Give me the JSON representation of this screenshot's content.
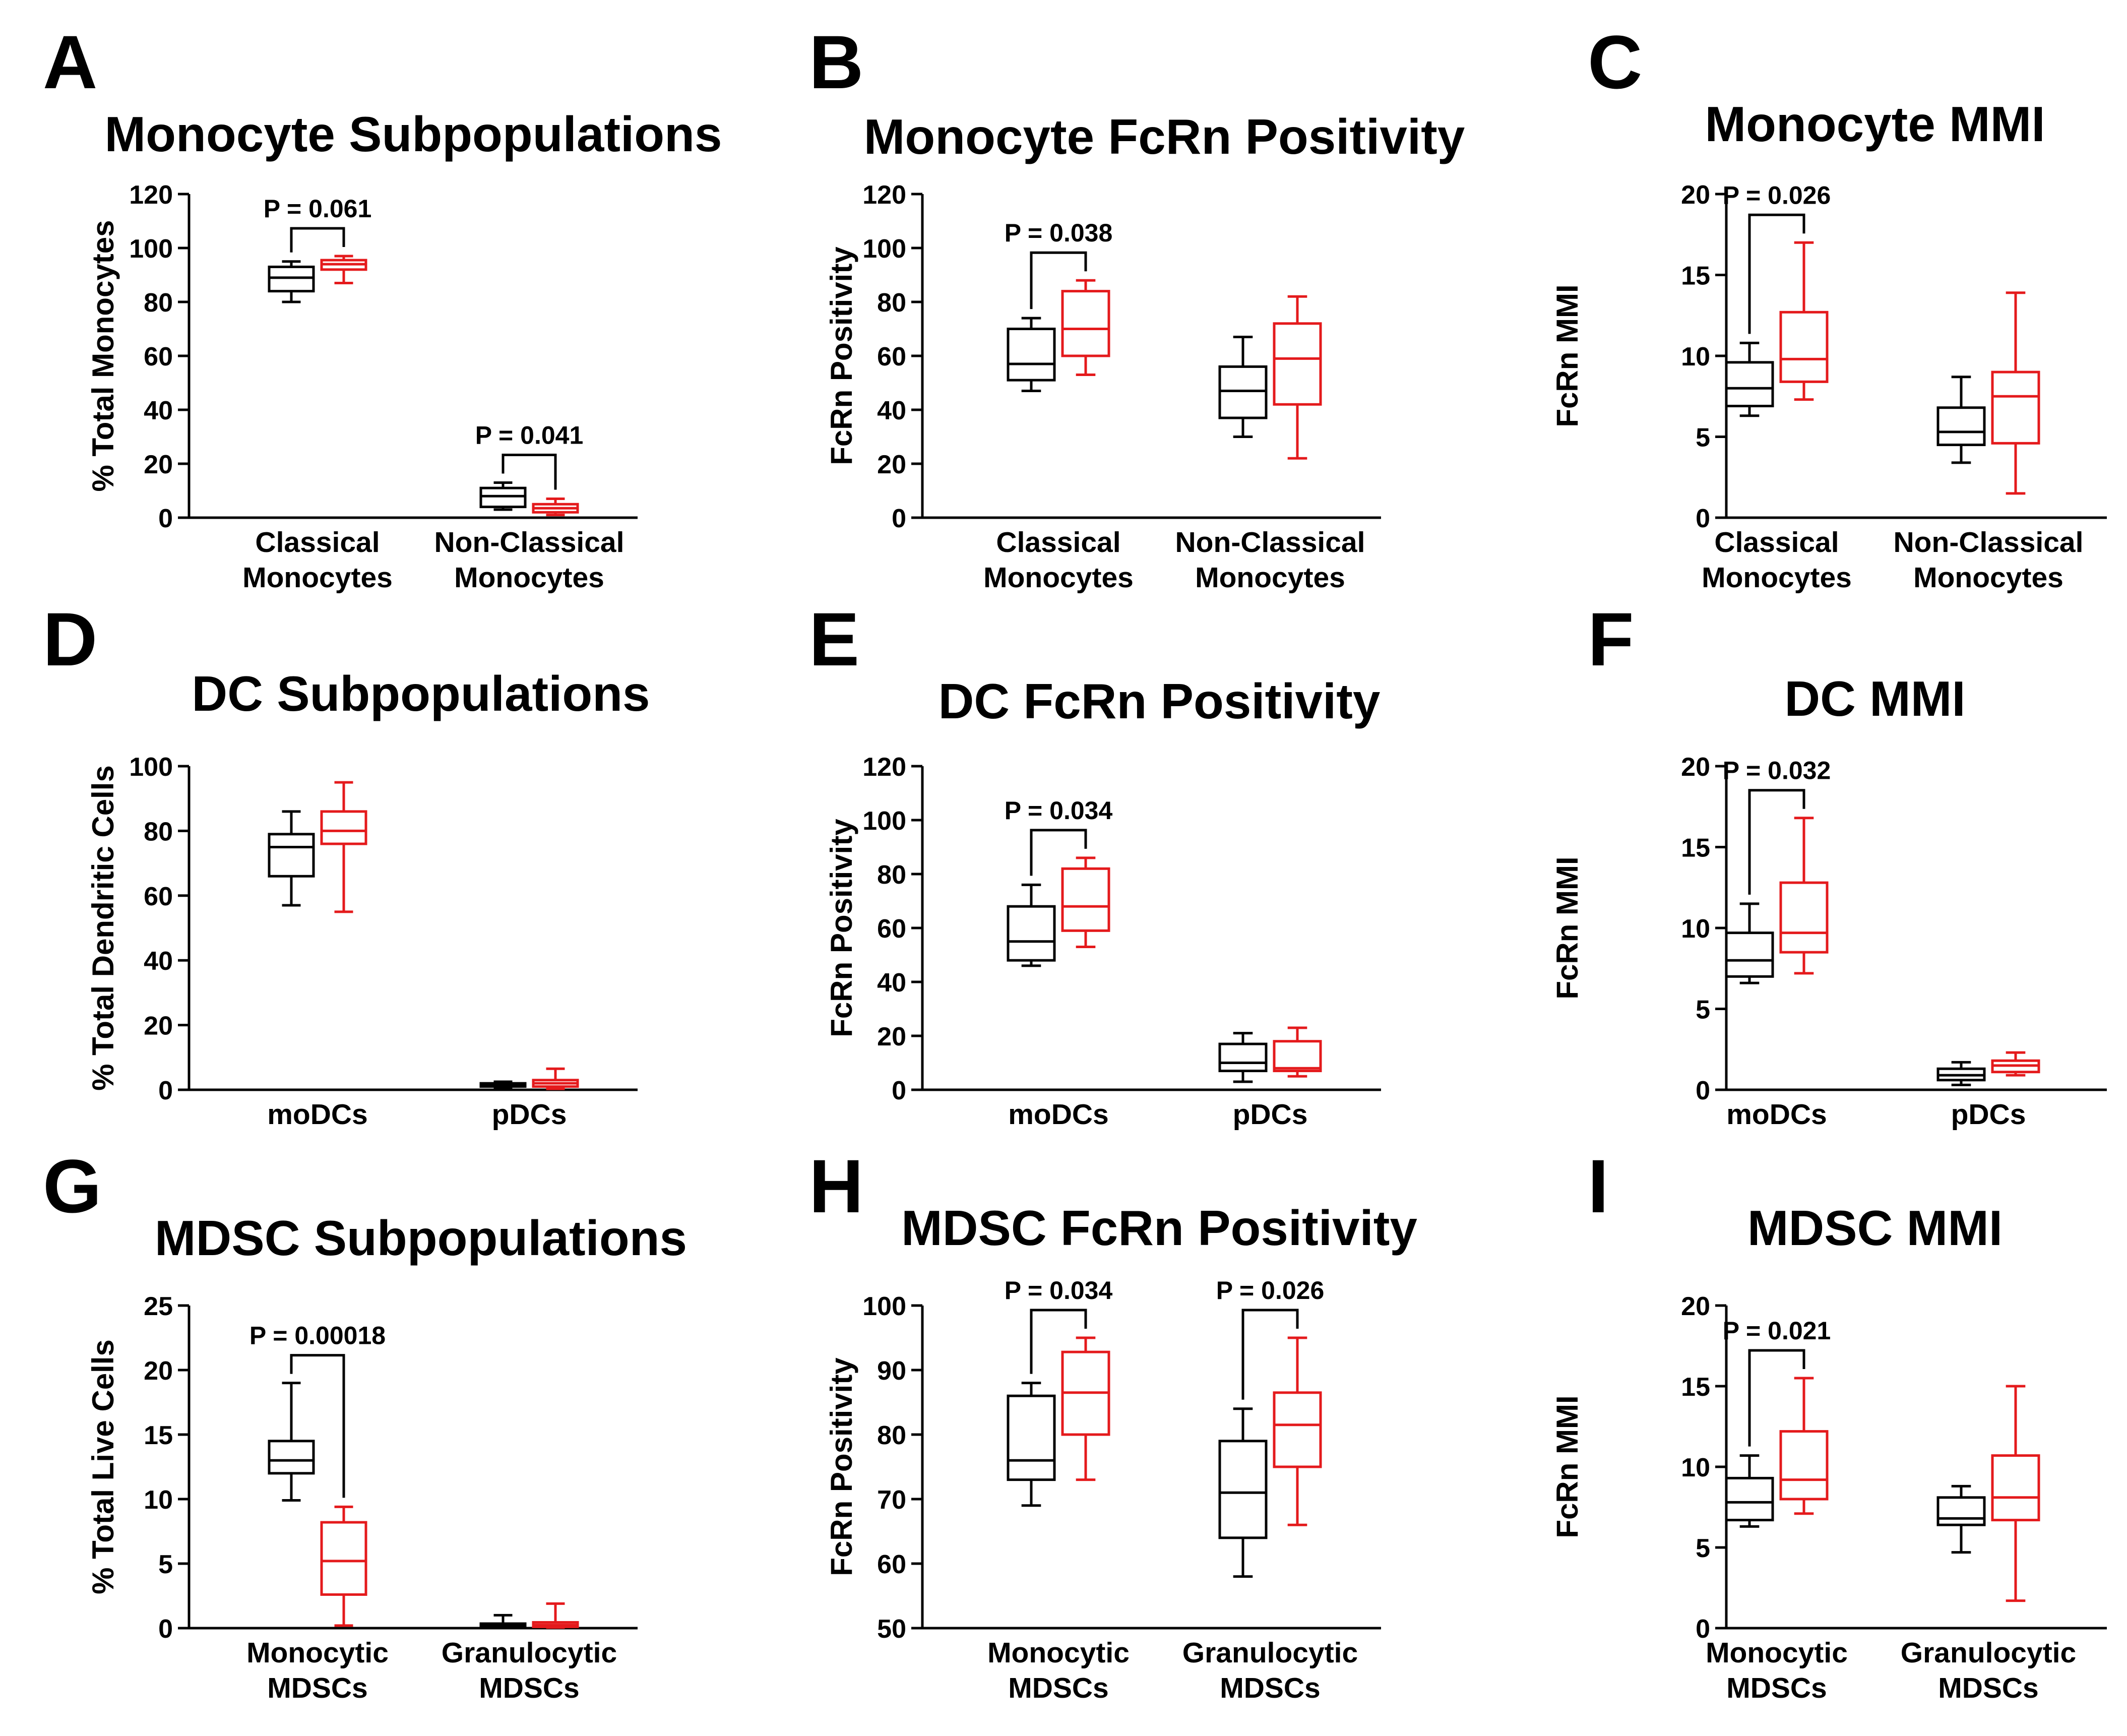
{
  "colors": {
    "group1": "#000000",
    "group2": "#e41a1c"
  },
  "chart_data": [
    {
      "panel": "A",
      "type": "box",
      "title": "Monocyte Subpopulations",
      "ylabel": "% Total Monocytes",
      "ylim": [
        0,
        120
      ],
      "yticks": [
        "0",
        "20",
        "40",
        "60",
        "80",
        "100",
        "120"
      ],
      "categories": [
        [
          "Classical",
          "Monocytes"
        ],
        [
          "Non-Classical",
          "Monocytes"
        ]
      ],
      "boxes": [
        [
          {
            "min": 80,
            "q1": 84,
            "median": 89,
            "q3": 93,
            "max": 95
          },
          {
            "min": 87,
            "q1": 92,
            "median": 94,
            "q3": 95.5,
            "max": 97
          }
        ],
        [
          {
            "min": 3,
            "q1": 4,
            "median": 8,
            "q3": 11,
            "max": 13
          },
          {
            "min": 1,
            "q1": 2,
            "median": 3.5,
            "q3": 5,
            "max": 7
          }
        ]
      ],
      "pvals": [
        {
          "category": 0,
          "text": "P = 0.061"
        },
        {
          "category": 1,
          "text": "P = 0.041"
        }
      ]
    },
    {
      "panel": "B",
      "type": "box",
      "title": "Monocyte FcRn Positivity",
      "ylabel": "FcRn Positivity",
      "ylim": [
        0,
        120
      ],
      "yticks": [
        "0",
        "20",
        "40",
        "60",
        "80",
        "100",
        "120"
      ],
      "categories": [
        [
          "Classical",
          "Monocytes"
        ],
        [
          "Non-Classical",
          "Monocytes"
        ]
      ],
      "boxes": [
        [
          {
            "min": 47,
            "q1": 51,
            "median": 57,
            "q3": 70,
            "max": 74
          },
          {
            "min": 53,
            "q1": 60,
            "median": 70,
            "q3": 84,
            "max": 88
          }
        ],
        [
          {
            "min": 30,
            "q1": 37,
            "median": 47,
            "q3": 56,
            "max": 67
          },
          {
            "min": 22,
            "q1": 42,
            "median": 59,
            "q3": 72,
            "max": 82
          }
        ]
      ],
      "pvals": [
        {
          "category": 0,
          "text": "P = 0.038"
        }
      ]
    },
    {
      "panel": "C",
      "type": "box",
      "title": "Monocyte MMI",
      "ylabel": "FcRn MMI",
      "ylim": [
        0,
        20
      ],
      "yticks": [
        "0",
        "5",
        "10",
        "15",
        "20"
      ],
      "categories": [
        [
          "Classical",
          "Monocytes"
        ],
        [
          "Non-Classical",
          "Monocytes"
        ]
      ],
      "boxes": [
        [
          {
            "min": 6.3,
            "q1": 6.9,
            "median": 8,
            "q3": 9.6,
            "max": 10.8
          },
          {
            "min": 7.3,
            "q1": 8.4,
            "median": 9.8,
            "q3": 12.7,
            "max": 17
          }
        ],
        [
          {
            "min": 3.4,
            "q1": 4.5,
            "median": 5.3,
            "q3": 6.8,
            "max": 8.7
          },
          {
            "min": 1.5,
            "q1": 4.6,
            "median": 7.5,
            "q3": 9,
            "max": 13.9
          }
        ]
      ],
      "pvals": [
        {
          "category": 0,
          "text": "P = 0.026"
        }
      ]
    },
    {
      "panel": "D",
      "type": "box",
      "title": "DC Subpopulations",
      "ylabel": "% Total Dendritic Cells",
      "ylim": [
        0,
        100
      ],
      "yticks": [
        "0",
        "20",
        "40",
        "60",
        "80",
        "100"
      ],
      "categories": [
        [
          "moDCs"
        ],
        [
          "pDCs"
        ]
      ],
      "boxes": [
        [
          {
            "min": 57,
            "q1": 66,
            "median": 75,
            "q3": 79,
            "max": 86
          },
          {
            "min": 55,
            "q1": 76,
            "median": 80,
            "q3": 86,
            "max": 95
          }
        ],
        [
          {
            "min": 0.5,
            "q1": 1,
            "median": 1.5,
            "q3": 2,
            "max": 2.5
          },
          {
            "min": 0.3,
            "q1": 1,
            "median": 2,
            "q3": 3,
            "max": 6.5
          }
        ]
      ],
      "pvals": []
    },
    {
      "panel": "E",
      "type": "box",
      "title": "DC FcRn Positivity",
      "ylabel": "FcRn Positivity",
      "ylim": [
        0,
        120
      ],
      "yticks": [
        "0",
        "20",
        "40",
        "60",
        "80",
        "100",
        "120"
      ],
      "categories": [
        [
          "moDCs"
        ],
        [
          "pDCs"
        ]
      ],
      "boxes": [
        [
          {
            "min": 46,
            "q1": 48,
            "median": 55,
            "q3": 68,
            "max": 76
          },
          {
            "min": 53,
            "q1": 59,
            "median": 68,
            "q3": 82,
            "max": 86
          }
        ],
        [
          {
            "min": 3,
            "q1": 7,
            "median": 10,
            "q3": 17,
            "max": 21
          },
          {
            "min": 5,
            "q1": 7,
            "median": 8,
            "q3": 18,
            "max": 23
          }
        ]
      ],
      "pvals": [
        {
          "category": 0,
          "text": "P = 0.034"
        }
      ]
    },
    {
      "panel": "F",
      "type": "box",
      "title": "DC MMI",
      "ylabel": "FcRn MMI",
      "ylim": [
        0,
        20
      ],
      "yticks": [
        "0",
        "5",
        "10",
        "15",
        "20"
      ],
      "categories": [
        [
          "moDCs"
        ],
        [
          "pDCs"
        ]
      ],
      "boxes": [
        [
          {
            "min": 6.6,
            "q1": 7,
            "median": 8,
            "q3": 9.7,
            "max": 11.5
          },
          {
            "min": 7.2,
            "q1": 8.5,
            "median": 9.7,
            "q3": 12.8,
            "max": 16.8
          }
        ],
        [
          {
            "min": 0.3,
            "q1": 0.6,
            "median": 0.9,
            "q3": 1.3,
            "max": 1.7
          },
          {
            "min": 0.9,
            "q1": 1.1,
            "median": 1.5,
            "q3": 1.8,
            "max": 2.3
          }
        ]
      ],
      "pvals": [
        {
          "category": 0,
          "text": "P = 0.032"
        }
      ]
    },
    {
      "panel": "G",
      "type": "box",
      "title": "MDSC Subpopulations",
      "ylabel": "% Total Live Cells",
      "ylim": [
        0,
        25
      ],
      "yticks": [
        "0",
        "5",
        "10",
        "15",
        "20",
        "25"
      ],
      "categories": [
        [
          "Monocytic",
          "MDSCs"
        ],
        [
          "Granulocytic",
          "MDSCs"
        ]
      ],
      "boxes": [
        [
          {
            "min": 9.9,
            "q1": 12,
            "median": 13,
            "q3": 14.5,
            "max": 19
          },
          {
            "min": 0.2,
            "q1": 2.6,
            "median": 5.2,
            "q3": 8.2,
            "max": 9.4
          }
        ],
        [
          {
            "min": 0.05,
            "q1": 0.1,
            "median": 0.2,
            "q3": 0.35,
            "max": 1
          },
          {
            "min": 0.05,
            "q1": 0.1,
            "median": 0.25,
            "q3": 0.45,
            "max": 1.9
          }
        ]
      ],
      "pvals": [
        {
          "category": 0,
          "text": "P = 0.00018"
        }
      ]
    },
    {
      "panel": "H",
      "type": "box",
      "title": "MDSC FcRn Positivity",
      "ylabel": "FcRn Positivity",
      "ylim": [
        50,
        100
      ],
      "yticks": [
        "50",
        "60",
        "70",
        "80",
        "90",
        "100"
      ],
      "categories": [
        [
          "Monocytic",
          "MDSCs"
        ],
        [
          "Granulocytic",
          "MDSCs"
        ]
      ],
      "boxes": [
        [
          {
            "min": 69,
            "q1": 73,
            "median": 76,
            "q3": 86,
            "max": 88
          },
          {
            "min": 73,
            "q1": 80,
            "median": 86.5,
            "q3": 92.8,
            "max": 95
          }
        ],
        [
          {
            "min": 58,
            "q1": 64,
            "median": 71,
            "q3": 79,
            "max": 84
          },
          {
            "min": 66,
            "q1": 75,
            "median": 81.5,
            "q3": 86.5,
            "max": 95
          }
        ]
      ],
      "pvals": [
        {
          "category": 0,
          "text": "P = 0.034"
        },
        {
          "category": 1,
          "text": "P = 0.026"
        }
      ]
    },
    {
      "panel": "I",
      "type": "box",
      "title": "MDSC MMI",
      "ylabel": "FcRn MMI",
      "ylim": [
        0,
        20
      ],
      "yticks": [
        "0",
        "5",
        "10",
        "15",
        "20"
      ],
      "categories": [
        [
          "Monocytic",
          "MDSCs"
        ],
        [
          "Granulocytic",
          "MDSCs"
        ]
      ],
      "boxes": [
        [
          {
            "min": 6.3,
            "q1": 6.7,
            "median": 7.8,
            "q3": 9.3,
            "max": 10.7
          },
          {
            "min": 7.1,
            "q1": 8,
            "median": 9.2,
            "q3": 12.2,
            "max": 15.5
          }
        ],
        [
          {
            "min": 4.7,
            "q1": 6.4,
            "median": 6.8,
            "q3": 8.1,
            "max": 8.8
          },
          {
            "min": 1.7,
            "q1": 6.7,
            "median": 8.1,
            "q3": 10.7,
            "max": 15
          }
        ]
      ],
      "pvals": [
        {
          "category": 0,
          "text": "P = 0.021"
        }
      ]
    }
  ]
}
